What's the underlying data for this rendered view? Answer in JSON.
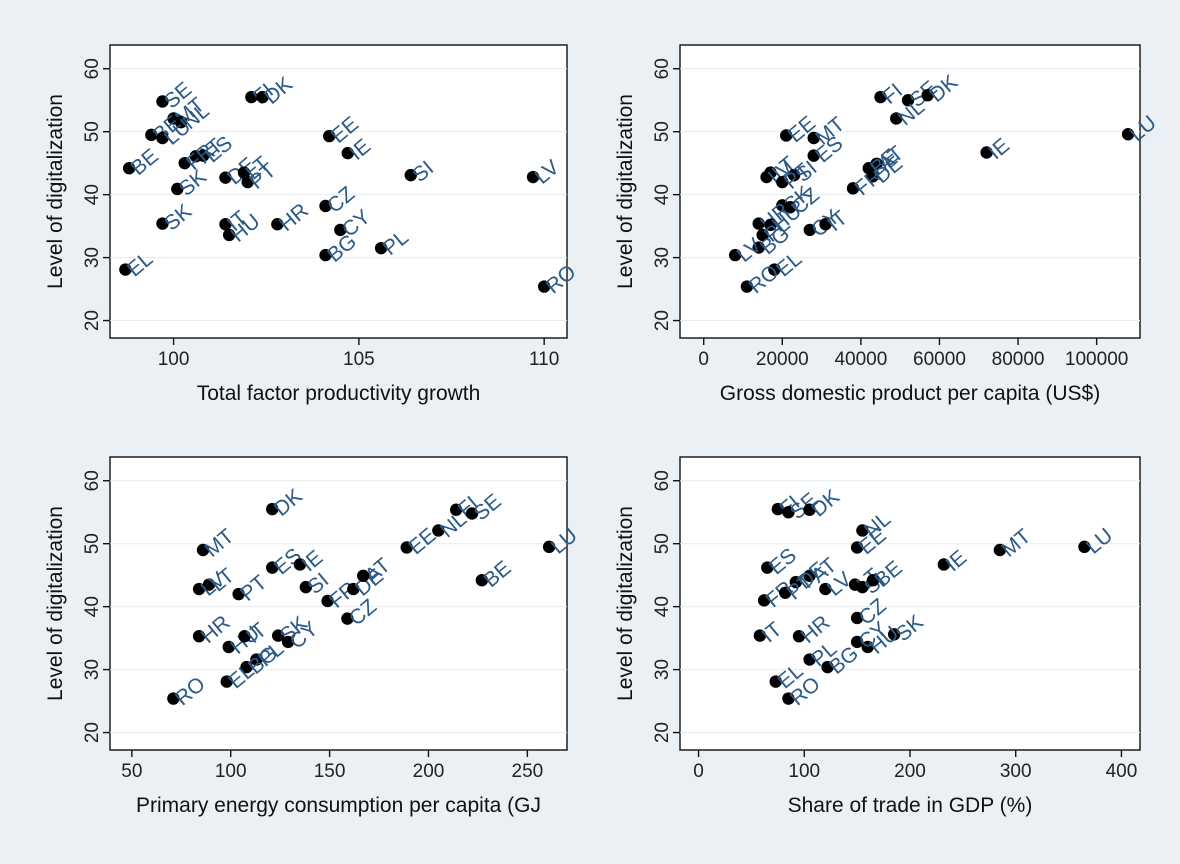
{
  "background": "#eaf0f3",
  "marker_color": "#000000",
  "label_color": "#2b5a86",
  "chart_data": [
    {
      "type": "scatter",
      "xlabel": "Total factor productivity growth",
      "ylabel": "Level of digitalization",
      "xlim": [
        98.5,
        110.4
      ],
      "ylim": [
        18.5,
        62.5
      ],
      "xticks": [
        100,
        105,
        110
      ],
      "yticks": [
        20,
        30,
        40,
        50,
        60
      ],
      "grid": false,
      "points": [
        {
          "label": "SE",
          "x": 99.7,
          "y": 54.8
        },
        {
          "label": "MT",
          "x": 100.0,
          "y": 52.1
        },
        {
          "label": "NL",
          "x": 100.2,
          "y": 51.5
        },
        {
          "label": "BE",
          "x": 99.4,
          "y": 49.5
        },
        {
          "label": "LU",
          "x": 99.7,
          "y": 49.0
        },
        {
          "label": "AT",
          "x": 100.6,
          "y": 46.1
        },
        {
          "label": "ES",
          "x": 100.8,
          "y": 46.2
        },
        {
          "label": "FR",
          "x": 100.3,
          "y": 45.0
        },
        {
          "label": "BE",
          "x": 98.8,
          "y": 44.2
        },
        {
          "label": "DE",
          "x": 101.4,
          "y": 42.7
        },
        {
          "label": "LT",
          "x": 101.9,
          "y": 43.5
        },
        {
          "label": "PT",
          "x": 102.0,
          "y": 42.0
        },
        {
          "label": "SK",
          "x": 100.1,
          "y": 40.9
        },
        {
          "label": "SK",
          "x": 99.7,
          "y": 35.4
        },
        {
          "label": "IT",
          "x": 101.4,
          "y": 35.3
        },
        {
          "label": "HU",
          "x": 101.5,
          "y": 33.6
        },
        {
          "label": "HR",
          "x": 102.8,
          "y": 35.3
        },
        {
          "label": "FI",
          "x": 102.1,
          "y": 55.5
        },
        {
          "label": "DK",
          "x": 102.4,
          "y": 55.5
        },
        {
          "label": "EE",
          "x": 104.2,
          "y": 49.3
        },
        {
          "label": "IE",
          "x": 104.7,
          "y": 46.6
        },
        {
          "label": "CZ",
          "x": 104.1,
          "y": 38.2
        },
        {
          "label": "CY",
          "x": 104.5,
          "y": 34.4
        },
        {
          "label": "BG",
          "x": 104.1,
          "y": 30.4
        },
        {
          "label": "SI",
          "x": 106.4,
          "y": 43.1
        },
        {
          "label": "PL",
          "x": 105.6,
          "y": 31.5
        },
        {
          "label": "LV",
          "x": 109.7,
          "y": 42.8
        },
        {
          "label": "RO",
          "x": 110.0,
          "y": 25.4
        },
        {
          "label": "EL",
          "x": 98.7,
          "y": 28.1
        }
      ]
    },
    {
      "type": "scatter",
      "xlabel": "Gross domestic product per capita (US$)",
      "ylabel": "Level of digitalization",
      "xlim": [
        -4000,
        109000
      ],
      "ylim": [
        18.5,
        62.5
      ],
      "xticks": [
        0,
        20000,
        40000,
        60000,
        80000,
        100000
      ],
      "yticks": [
        20,
        30,
        40,
        50,
        60
      ],
      "grid": false,
      "points": [
        {
          "label": "FI",
          "x": 45000,
          "y": 55.5
        },
        {
          "label": "SE",
          "x": 52000,
          "y": 55.0
        },
        {
          "label": "DK",
          "x": 57000,
          "y": 55.8
        },
        {
          "label": "NL",
          "x": 49000,
          "y": 52.1
        },
        {
          "label": "LU",
          "x": 108000,
          "y": 49.6
        },
        {
          "label": "IE",
          "x": 72000,
          "y": 46.7
        },
        {
          "label": "EE",
          "x": 21000,
          "y": 49.4
        },
        {
          "label": "MT",
          "x": 28000,
          "y": 49.0
        },
        {
          "label": "ES",
          "x": 28000,
          "y": 46.2
        },
        {
          "label": "LT",
          "x": 17000,
          "y": 43.5
        },
        {
          "label": "SI",
          "x": 23000,
          "y": 43.1
        },
        {
          "label": "LV",
          "x": 16000,
          "y": 42.8
        },
        {
          "label": "PT",
          "x": 20000,
          "y": 42.0
        },
        {
          "label": "AT",
          "x": 44000,
          "y": 44.9
        },
        {
          "label": "DE",
          "x": 43000,
          "y": 42.9
        },
        {
          "label": "FR",
          "x": 38000,
          "y": 41.0
        },
        {
          "label": "BE",
          "x": 42000,
          "y": 44.2
        },
        {
          "label": "SK",
          "x": 20000,
          "y": 38.3
        },
        {
          "label": "CZ",
          "x": 22000,
          "y": 38.0
        },
        {
          "label": "HR",
          "x": 14000,
          "y": 35.4
        },
        {
          "label": "HU",
          "x": 17000,
          "y": 35.2
        },
        {
          "label": "PL",
          "x": 15000,
          "y": 33.6
        },
        {
          "label": "CY",
          "x": 27000,
          "y": 34.4
        },
        {
          "label": "IT",
          "x": 31000,
          "y": 35.3
        },
        {
          "label": "BG",
          "x": 14000,
          "y": 31.6
        },
        {
          "label": "LV",
          "x": 8000,
          "y": 30.4
        },
        {
          "label": "EL",
          "x": 18000,
          "y": 28.1
        },
        {
          "label": "RO",
          "x": 11000,
          "y": 25.4
        }
      ]
    },
    {
      "type": "scatter",
      "xlabel": "Primary energy consumption per capita (GJ",
      "ylabel": "Level of digitalization",
      "xlim": [
        43,
        266
      ],
      "ylim": [
        18.5,
        62.5
      ],
      "xticks": [
        50,
        100,
        150,
        200,
        250
      ],
      "yticks": [
        20,
        30,
        40,
        50,
        60
      ],
      "grid": false,
      "points": [
        {
          "label": "DK",
          "x": 121,
          "y": 55.5
        },
        {
          "label": "FI",
          "x": 214,
          "y": 55.4
        },
        {
          "label": "SE",
          "x": 222,
          "y": 54.8
        },
        {
          "label": "NL",
          "x": 205,
          "y": 52.1
        },
        {
          "label": "LU",
          "x": 261,
          "y": 49.5
        },
        {
          "label": "EE",
          "x": 189,
          "y": 49.4
        },
        {
          "label": "MT",
          "x": 86,
          "y": 49.0
        },
        {
          "label": "ES",
          "x": 121,
          "y": 46.2
        },
        {
          "label": "IE",
          "x": 135,
          "y": 46.7
        },
        {
          "label": "LT",
          "x": 89,
          "y": 43.5
        },
        {
          "label": "LV",
          "x": 84,
          "y": 42.8
        },
        {
          "label": "PT",
          "x": 104,
          "y": 42.0
        },
        {
          "label": "SI",
          "x": 138,
          "y": 43.1
        },
        {
          "label": "FR",
          "x": 149,
          "y": 40.9
        },
        {
          "label": "DE",
          "x": 162,
          "y": 42.8
        },
        {
          "label": "AT",
          "x": 167,
          "y": 44.9
        },
        {
          "label": "BE",
          "x": 227,
          "y": 44.2
        },
        {
          "label": "CZ",
          "x": 159,
          "y": 38.1
        },
        {
          "label": "HR",
          "x": 84,
          "y": 35.3
        },
        {
          "label": "HU",
          "x": 99,
          "y": 33.6
        },
        {
          "label": "IT",
          "x": 107,
          "y": 35.3
        },
        {
          "label": "SK",
          "x": 124,
          "y": 35.4
        },
        {
          "label": "CY",
          "x": 129,
          "y": 34.4
        },
        {
          "label": "PL",
          "x": 113,
          "y": 31.6
        },
        {
          "label": "BG",
          "x": 108,
          "y": 30.4
        },
        {
          "label": "EL",
          "x": 98,
          "y": 28.1
        },
        {
          "label": "RO",
          "x": 71,
          "y": 25.4
        }
      ]
    },
    {
      "type": "scatter",
      "xlabel": "Share of trade in GDP (%)",
      "ylabel": "Level of digitalization",
      "xlim": [
        -10,
        410
      ],
      "ylim": [
        18.5,
        62.5
      ],
      "xticks": [
        0,
        100,
        200,
        300,
        400
      ],
      "yticks": [
        20,
        30,
        40,
        50,
        60
      ],
      "grid": false,
      "points": [
        {
          "label": "FI",
          "x": 75,
          "y": 55.5
        },
        {
          "label": "SE",
          "x": 85,
          "y": 55.0
        },
        {
          "label": "DK",
          "x": 105,
          "y": 55.4
        },
        {
          "label": "NL",
          "x": 155,
          "y": 52.1
        },
        {
          "label": "EE",
          "x": 150,
          "y": 49.4
        },
        {
          "label": "LU",
          "x": 365,
          "y": 49.5
        },
        {
          "label": "MT",
          "x": 285,
          "y": 49.0
        },
        {
          "label": "IE",
          "x": 232,
          "y": 46.7
        },
        {
          "label": "ES",
          "x": 65,
          "y": 46.2
        },
        {
          "label": "AT",
          "x": 105,
          "y": 44.9
        },
        {
          "label": "DE",
          "x": 92,
          "y": 43.9
        },
        {
          "label": "FR",
          "x": 62,
          "y": 41.0
        },
        {
          "label": "PT",
          "x": 82,
          "y": 42.2
        },
        {
          "label": "LT",
          "x": 148,
          "y": 43.5
        },
        {
          "label": "SI",
          "x": 155,
          "y": 43.1
        },
        {
          "label": "LV",
          "x": 120,
          "y": 42.8
        },
        {
          "label": "BE",
          "x": 165,
          "y": 44.2
        },
        {
          "label": "CZ",
          "x": 150,
          "y": 38.2
        },
        {
          "label": "IT",
          "x": 58,
          "y": 35.4
        },
        {
          "label": "HR",
          "x": 95,
          "y": 35.3
        },
        {
          "label": "SK",
          "x": 185,
          "y": 35.6
        },
        {
          "label": "HU",
          "x": 160,
          "y": 33.6
        },
        {
          "label": "CY",
          "x": 150,
          "y": 34.4
        },
        {
          "label": "PL",
          "x": 105,
          "y": 31.6
        },
        {
          "label": "BG",
          "x": 122,
          "y": 30.4
        },
        {
          "label": "EL",
          "x": 73,
          "y": 28.1
        },
        {
          "label": "RO",
          "x": 85,
          "y": 25.4
        }
      ]
    }
  ]
}
